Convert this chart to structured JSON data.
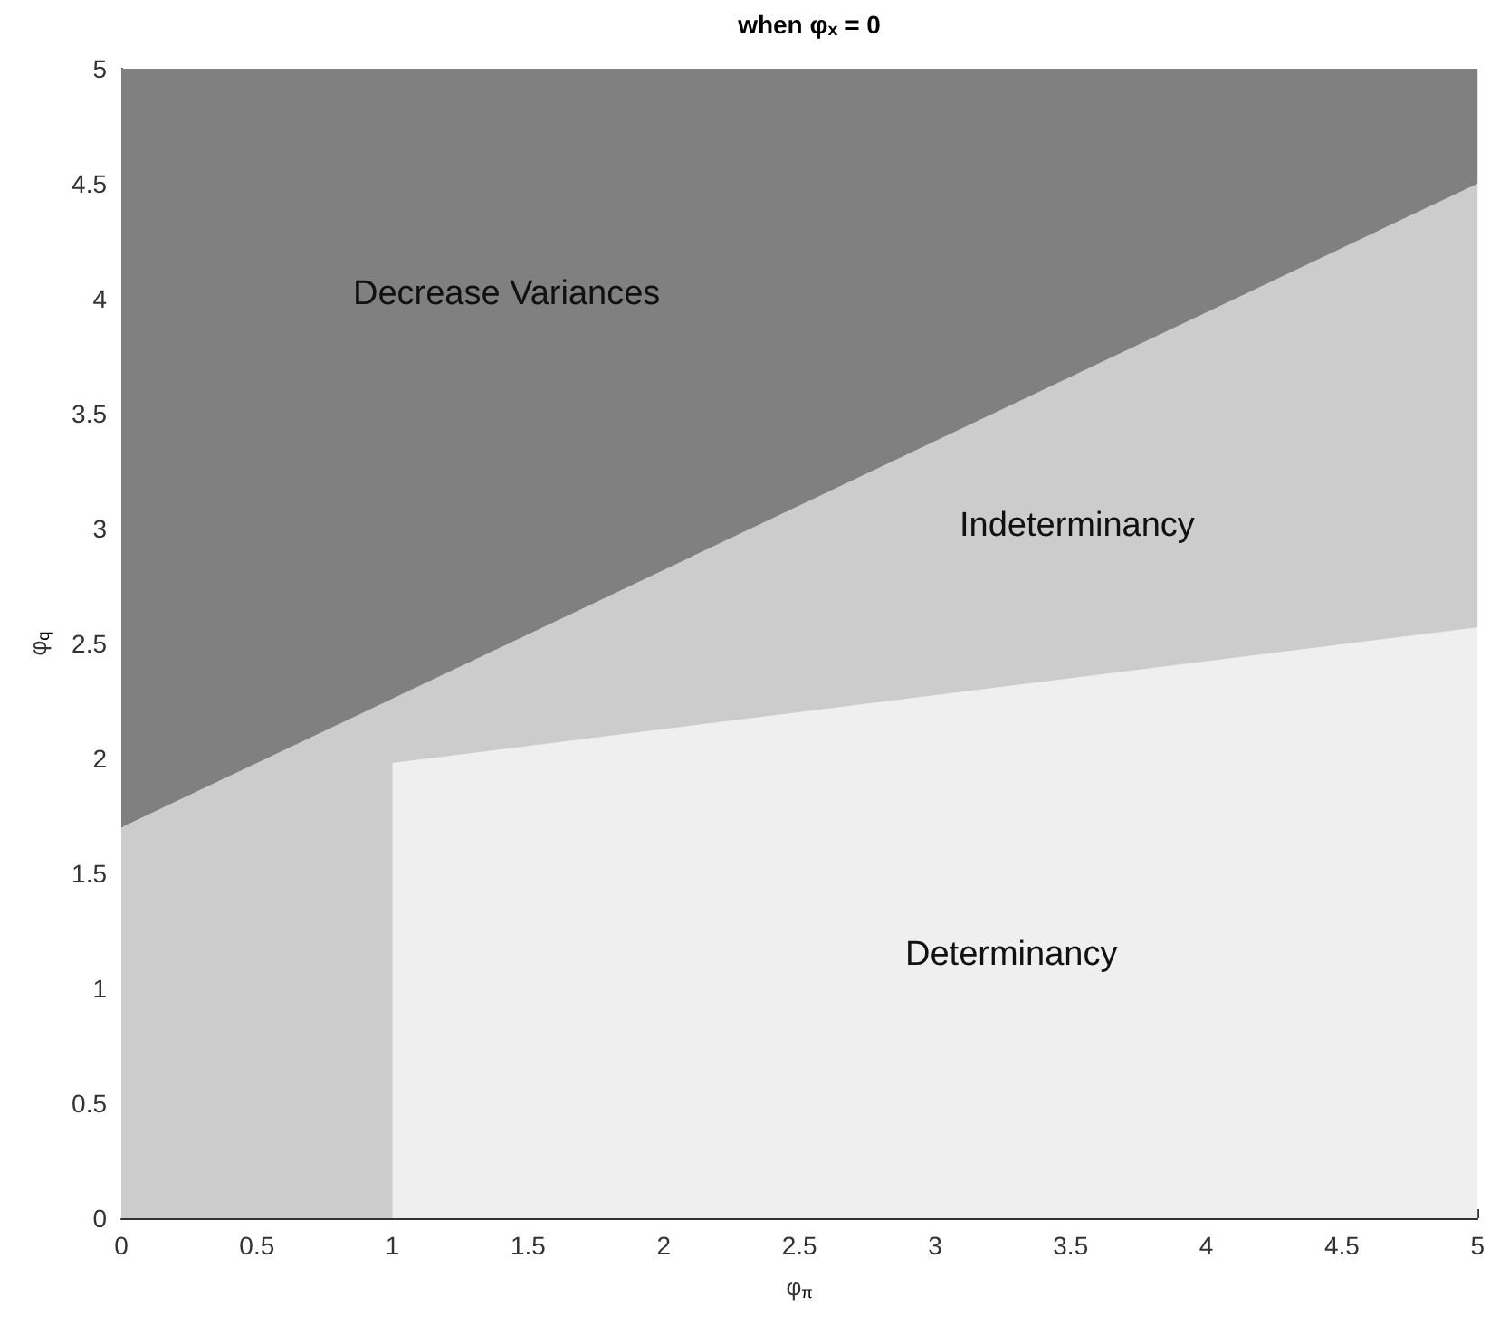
{
  "chart_data": {
    "type": "area",
    "title": "when φ$_{x}$ = 0",
    "xlabel": "φ$_{π}$",
    "ylabel": "φ$_{q}$",
    "series": [
      {
        "values": [
          0,
          0,
          1.98,
          2.57
        ],
        "color": "#efefef"
      },
      {
        "values": [
          1.7,
          2.26,
          0.28,
          1.93
        ],
        "color": "#cccccc"
      },
      {
        "values": [
          3.3,
          2.74,
          2.74,
          0.5
        ],
        "color": "#808080"
      }
    ],
    "x": [
      0,
      1,
      1,
      5
    ],
    "stacked": true,
    "xlim": [
      0,
      5
    ],
    "xticks": [
      0,
      0.5,
      1,
      1.5,
      2,
      2.5,
      3,
      3.5,
      4,
      4.5,
      5
    ],
    "ylim": [
      0,
      5
    ],
    "yticks": [
      0,
      0.5,
      1,
      1.5,
      2,
      2.5,
      3,
      3.5,
      4,
      4.5,
      5
    ],
    "annotations": [
      "Decrease Variances",
      "Indeterminancy",
      "Determinancy"
    ],
    "grid": false
  }
}
